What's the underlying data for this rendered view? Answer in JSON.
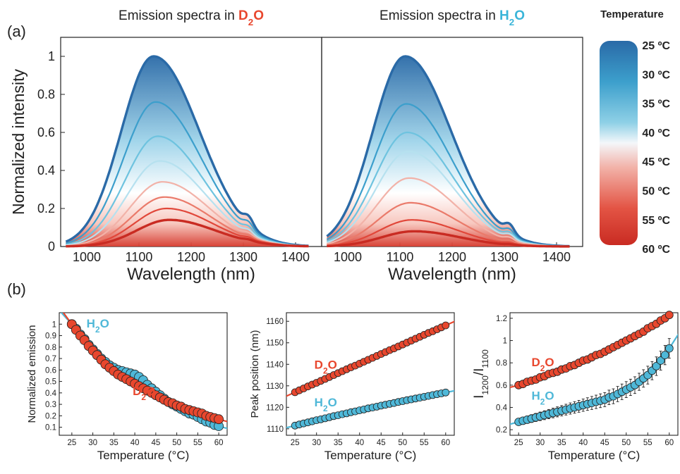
{
  "panel_labels": {
    "a": "(a)",
    "b": "(b)"
  },
  "colorbar": {
    "title": "Temperature",
    "labels": [
      "25 ºC",
      "30 ºC",
      "35 ºC",
      "40 ºC",
      "45 ºC",
      "50 ºC",
      "55 ºC",
      "60 ºC"
    ],
    "colors": [
      "#2a6aa7",
      "#3c9fcc",
      "#6ec3df",
      "#b6e1ef",
      "#f2b2a8",
      "#ea7a6a",
      "#e1473a",
      "#c92b22"
    ]
  },
  "chart_data": [
    {
      "type": "line",
      "title": {
        "prefix": "Emission spectra in ",
        "solvent": [
          "D",
          "2",
          "O"
        ],
        "solvent_color": "#e8472e"
      },
      "xlabel": "Wavelength (nm)",
      "ylabel": "Normalized intensity",
      "xlim": [
        950,
        1450
      ],
      "ylim": [
        0,
        1.1
      ],
      "xticks": [
        1000,
        1100,
        1200,
        1300,
        1400
      ],
      "yticks": [
        0,
        0.2,
        0.4,
        0.6,
        0.8,
        1
      ],
      "series": [
        {
          "temperature": 25,
          "peak_x": 1128,
          "peak_y": 1.0
        },
        {
          "temperature": 30,
          "peak_x": 1132,
          "peak_y": 0.76
        },
        {
          "temperature": 35,
          "peak_x": 1136,
          "peak_y": 0.58
        },
        {
          "temperature": 40,
          "peak_x": 1140,
          "peak_y": 0.45
        },
        {
          "temperature": 45,
          "peak_x": 1145,
          "peak_y": 0.34
        },
        {
          "temperature": 50,
          "peak_x": 1149,
          "peak_y": 0.26
        },
        {
          "temperature": 55,
          "peak_x": 1153,
          "peak_y": 0.2
        },
        {
          "temperature": 60,
          "peak_x": 1158,
          "peak_y": 0.14
        }
      ]
    },
    {
      "type": "line",
      "title": {
        "prefix": "Emission spectra in ",
        "solvent": [
          "H",
          "2",
          "O"
        ],
        "solvent_color": "#3ab5d9"
      },
      "xlabel": "Wavelength (nm)",
      "xlim": [
        950,
        1450
      ],
      "ylim": [
        0,
        1.1
      ],
      "xticks": [
        1000,
        1100,
        1200,
        1300,
        1400
      ],
      "series": [
        {
          "temperature": 25,
          "peak_x": 1110,
          "peak_y": 1.0
        },
        {
          "temperature": 30,
          "peak_x": 1112,
          "peak_y": 0.75
        },
        {
          "temperature": 35,
          "peak_x": 1114,
          "peak_y": 0.6
        },
        {
          "temperature": 40,
          "peak_x": 1116,
          "peak_y": 0.5
        },
        {
          "temperature": 45,
          "peak_x": 1118,
          "peak_y": 0.36
        },
        {
          "temperature": 50,
          "peak_x": 1120,
          "peak_y": 0.23
        },
        {
          "temperature": 55,
          "peak_x": 1123,
          "peak_y": 0.14
        },
        {
          "temperature": 60,
          "peak_x": 1127,
          "peak_y": 0.08
        }
      ]
    },
    {
      "type": "scatter",
      "xlabel": "Temperature (°C)",
      "ylabel": "Normalized emission",
      "xlim": [
        22,
        62
      ],
      "ylim": [
        0.03,
        1.1
      ],
      "xticks": [
        25,
        30,
        35,
        40,
        45,
        50,
        55,
        60
      ],
      "yticks": [
        0.1,
        0.2,
        0.3,
        0.4,
        0.5,
        0.6,
        0.7,
        0.8,
        0.9,
        1
      ],
      "series": [
        {
          "name": [
            "H",
            "2",
            "O"
          ],
          "color": "#4fb8d8",
          "label_at": [
            28.5,
            0.97
          ],
          "x": [
            25,
            26,
            27,
            28,
            29,
            30,
            31,
            32,
            33,
            34,
            35,
            36,
            37,
            38,
            39,
            40,
            41,
            42,
            43,
            44,
            45,
            46,
            47,
            48,
            49,
            50,
            51,
            52,
            53,
            54,
            55,
            56,
            57,
            58,
            59,
            60
          ],
          "y": [
            1.0,
            0.96,
            0.91,
            0.87,
            0.82,
            0.78,
            0.74,
            0.7,
            0.67,
            0.64,
            0.62,
            0.6,
            0.59,
            0.58,
            0.57,
            0.56,
            0.54,
            0.51,
            0.47,
            0.44,
            0.41,
            0.38,
            0.35,
            0.32,
            0.3,
            0.28,
            0.26,
            0.24,
            0.22,
            0.21,
            0.19,
            0.17,
            0.15,
            0.14,
            0.12,
            0.11
          ]
        },
        {
          "name": [
            "D",
            "2",
            "O"
          ],
          "color": "#e8472e",
          "label_at": [
            39.5,
            0.38
          ],
          "x": [
            25,
            26,
            27,
            28,
            29,
            30,
            31,
            32,
            33,
            34,
            35,
            36,
            37,
            38,
            39,
            40,
            41,
            42,
            43,
            44,
            45,
            46,
            47,
            48,
            49,
            50,
            51,
            52,
            53,
            54,
            55,
            56,
            57,
            58,
            59,
            60
          ],
          "y": [
            1.0,
            0.95,
            0.9,
            0.86,
            0.81,
            0.77,
            0.73,
            0.69,
            0.65,
            0.62,
            0.59,
            0.56,
            0.54,
            0.52,
            0.5,
            0.48,
            0.46,
            0.44,
            0.42,
            0.4,
            0.38,
            0.36,
            0.34,
            0.32,
            0.31,
            0.29,
            0.28,
            0.26,
            0.25,
            0.24,
            0.23,
            0.22,
            0.2,
            0.19,
            0.18,
            0.17
          ]
        }
      ]
    },
    {
      "type": "scatter",
      "xlabel": "Temperature (°C)",
      "ylabel": "Peak position (nm)",
      "xlim": [
        23,
        62
      ],
      "ylim": [
        1107,
        1164
      ],
      "xticks": [
        25,
        30,
        35,
        40,
        45,
        50,
        55,
        60
      ],
      "yticks": [
        1110,
        1120,
        1130,
        1140,
        1150,
        1160
      ],
      "series": [
        {
          "name": [
            "D",
            "2",
            "O"
          ],
          "color": "#e8472e",
          "label_at": [
            29.5,
            1138
          ],
          "x": [
            25,
            26,
            27,
            28,
            29,
            30,
            31,
            32,
            33,
            34,
            35,
            36,
            37,
            38,
            39,
            40,
            41,
            42,
            43,
            44,
            45,
            46,
            47,
            48,
            49,
            50,
            51,
            52,
            53,
            54,
            55,
            56,
            57,
            58,
            59,
            60
          ],
          "y": [
            1127,
            1127.9,
            1128.8,
            1129.7,
            1130.6,
            1131.4,
            1132.3,
            1133.2,
            1134.1,
            1135,
            1135.9,
            1136.8,
            1137.7,
            1138.6,
            1139.4,
            1140.3,
            1141.2,
            1142.1,
            1143,
            1143.9,
            1144.8,
            1145.7,
            1146.6,
            1147.4,
            1148.3,
            1149.2,
            1150.1,
            1151,
            1151.9,
            1152.8,
            1153.7,
            1154.6,
            1155.4,
            1156.3,
            1157.2,
            1158.1
          ]
        },
        {
          "name": [
            "H",
            "2",
            "O"
          ],
          "color": "#4fb8d8",
          "label_at": [
            29.5,
            1120.5
          ],
          "x": [
            25,
            26,
            27,
            28,
            29,
            30,
            31,
            32,
            33,
            34,
            35,
            36,
            37,
            38,
            39,
            40,
            41,
            42,
            43,
            44,
            45,
            46,
            47,
            48,
            49,
            50,
            51,
            52,
            53,
            54,
            55,
            56,
            57,
            58,
            59,
            60
          ],
          "y": [
            1111.5,
            1112,
            1112.5,
            1113,
            1113.5,
            1114,
            1114.4,
            1114.9,
            1115.4,
            1115.9,
            1116.3,
            1116.8,
            1117.2,
            1117.7,
            1118.1,
            1118.6,
            1119,
            1119.5,
            1119.9,
            1120.3,
            1120.8,
            1121.2,
            1121.6,
            1122,
            1122.5,
            1122.9,
            1123.3,
            1123.7,
            1124.1,
            1124.5,
            1124.9,
            1125.3,
            1125.7,
            1126.1,
            1126.5,
            1126.9
          ]
        }
      ]
    },
    {
      "type": "scatter",
      "xlabel": "Temperature (°C)",
      "ylabel": {
        "main": "I",
        "sub1": "1200",
        "sep": "/I",
        "sub2": "1100"
      },
      "xlim": [
        23,
        62
      ],
      "ylim": [
        0.15,
        1.25
      ],
      "xticks": [
        25,
        30,
        35,
        40,
        45,
        50,
        55,
        60
      ],
      "yticks": [
        0.2,
        0.4,
        0.6,
        0.8,
        1,
        1.2
      ],
      "series": [
        {
          "name": [
            "D",
            "2",
            "O"
          ],
          "color": "#e8472e",
          "label_at": [
            28,
            0.77
          ],
          "x": [
            25,
            26,
            27,
            28,
            29,
            30,
            31,
            32,
            33,
            34,
            35,
            36,
            37,
            38,
            39,
            40,
            41,
            42,
            43,
            44,
            45,
            46,
            47,
            48,
            49,
            50,
            51,
            52,
            53,
            54,
            55,
            56,
            57,
            58,
            59,
            60
          ],
          "y": [
            0.6,
            0.61,
            0.63,
            0.64,
            0.65,
            0.67,
            0.68,
            0.7,
            0.71,
            0.72,
            0.74,
            0.75,
            0.77,
            0.78,
            0.8,
            0.82,
            0.83,
            0.85,
            0.87,
            0.88,
            0.9,
            0.92,
            0.94,
            0.96,
            0.98,
            1.0,
            1.02,
            1.04,
            1.06,
            1.08,
            1.11,
            1.13,
            1.15,
            1.18,
            1.2,
            1.23
          ]
        },
        {
          "name": [
            "H",
            "2",
            "O"
          ],
          "color": "#4fb8d8",
          "label_at": [
            28,
            0.47
          ],
          "x": [
            25,
            26,
            27,
            28,
            29,
            30,
            31,
            32,
            33,
            34,
            35,
            36,
            37,
            38,
            39,
            40,
            41,
            42,
            43,
            44,
            45,
            46,
            47,
            48,
            49,
            50,
            51,
            52,
            53,
            54,
            55,
            56,
            57,
            58,
            59,
            60
          ],
          "y": [
            0.27,
            0.28,
            0.29,
            0.3,
            0.31,
            0.32,
            0.33,
            0.34,
            0.35,
            0.36,
            0.37,
            0.38,
            0.39,
            0.4,
            0.41,
            0.42,
            0.43,
            0.44,
            0.45,
            0.46,
            0.47,
            0.49,
            0.5,
            0.52,
            0.54,
            0.56,
            0.58,
            0.6,
            0.63,
            0.66,
            0.69,
            0.73,
            0.77,
            0.82,
            0.87,
            0.93
          ]
        }
      ]
    }
  ]
}
